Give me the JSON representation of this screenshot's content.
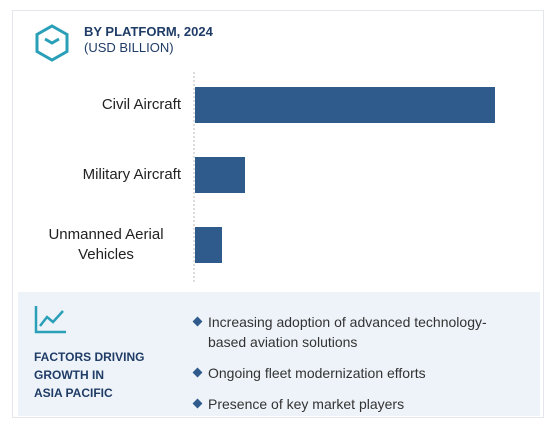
{
  "chart_data": {
    "type": "bar",
    "orientation": "horizontal",
    "title": "BY PLATFORM, 2024",
    "subtitle": "(USD BILLION)",
    "categories": [
      "Civil Aircraft",
      "Military Aircraft",
      "Unmanned Aerial Vehicles"
    ],
    "values": [
      30,
      5,
      2.7
    ],
    "color": "#2e5a8c",
    "xlim": [
      0,
      30
    ]
  },
  "factors": {
    "heading": [
      "FACTORS DRIVING",
      "GROWTH IN",
      "ASIA PACIFIC"
    ],
    "items": [
      "Increasing adoption of advanced technology-based aviation solutions",
      "Ongoing fleet modernization efforts",
      "Presence of key market players"
    ]
  }
}
